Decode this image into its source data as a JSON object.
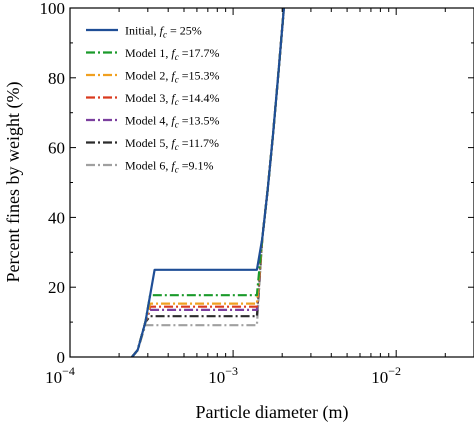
{
  "chart_data": {
    "type": "line",
    "xlabel": "Particle diameter (m)",
    "ylabel": "Percent fines by weight (%)",
    "xscale": "log",
    "xlim": [
      0.0001,
      0.03
    ],
    "ylim": [
      0,
      100
    ],
    "x_ticks": [
      {
        "value": 0.0001,
        "base": "10",
        "exp": "−4"
      },
      {
        "value": 0.001,
        "base": "10",
        "exp": "−3"
      },
      {
        "value": 0.01,
        "base": "10",
        "exp": "−2"
      }
    ],
    "y_ticks": [
      {
        "value": 0,
        "label": "0"
      },
      {
        "value": 20,
        "label": "20"
      },
      {
        "value": 40,
        "label": "40"
      },
      {
        "value": 60,
        "label": "60"
      },
      {
        "value": 80,
        "label": "80"
      },
      {
        "value": 100,
        "label": "100"
      }
    ],
    "legend_position": "top-left",
    "grid": false,
    "series": [
      {
        "name": "Initial, ",
        "fc_text": " = 25%",
        "color": "#1f4e96",
        "dash": "solid",
        "x": [
          0.00024,
          0.00026,
          0.00029,
          0.00033,
          0.0014,
          0.00151,
          0.00163,
          0.00176,
          0.0019,
          0.00205
        ],
        "y": [
          0,
          2,
          10,
          25,
          25,
          34,
          48,
          64,
          82,
          100
        ]
      },
      {
        "name": "Model 1, ",
        "fc_text": " =17.7%",
        "color": "#1a9a2a",
        "dash": "dashdot",
        "x": [
          0.00024,
          0.00026,
          0.00029,
          0.00031,
          0.0014,
          0.00151,
          0.00163,
          0.00176,
          0.0019,
          0.00205
        ],
        "y": [
          0,
          2,
          10,
          17.7,
          17.7,
          34,
          48,
          64,
          82,
          100
        ]
      },
      {
        "name": "Model 2, ",
        "fc_text": " =15.3%",
        "color": "#f0a020",
        "dash": "dashdot",
        "x": [
          0.00024,
          0.00026,
          0.00029,
          0.00031,
          0.0014,
          0.00151,
          0.00163,
          0.00176,
          0.0019,
          0.00205
        ],
        "y": [
          0,
          2,
          10,
          15.3,
          15.3,
          34,
          48,
          64,
          82,
          100
        ]
      },
      {
        "name": "Model 3, ",
        "fc_text": " =14.4%",
        "color": "#d93a1f",
        "dash": "dashdot",
        "x": [
          0.00024,
          0.00026,
          0.00029,
          0.00031,
          0.0014,
          0.00151,
          0.00163,
          0.00176,
          0.0019,
          0.00205
        ],
        "y": [
          0,
          2,
          10,
          14.4,
          14.4,
          34,
          48,
          64,
          82,
          100
        ]
      },
      {
        "name": "Model 4, ",
        "fc_text": " =13.5%",
        "color": "#7b3f9e",
        "dash": "dashdot",
        "x": [
          0.00024,
          0.00026,
          0.00029,
          0.00031,
          0.0014,
          0.00151,
          0.00163,
          0.00176,
          0.0019,
          0.00205
        ],
        "y": [
          0,
          2,
          10,
          13.5,
          13.5,
          34,
          48,
          64,
          82,
          100
        ]
      },
      {
        "name": "Model 5, ",
        "fc_text": " =11.7%",
        "color": "#2b2b2b",
        "dash": "dashdot",
        "x": [
          0.00024,
          0.00026,
          0.00029,
          0.00031,
          0.0014,
          0.00151,
          0.00163,
          0.00176,
          0.0019,
          0.00205
        ],
        "y": [
          0,
          2,
          10,
          11.7,
          11.7,
          34,
          48,
          64,
          82,
          100
        ]
      },
      {
        "name": "Model 6, ",
        "fc_text": " =9.1%",
        "color": "#a0a0a0",
        "dash": "dashdot",
        "x": [
          0.00024,
          0.00026,
          0.00029,
          0.00031,
          0.0014,
          0.00151,
          0.00163,
          0.00176,
          0.0019,
          0.00205
        ],
        "y": [
          0,
          2,
          9.1,
          9.1,
          9.1,
          34,
          48,
          64,
          82,
          100
        ]
      }
    ]
  }
}
